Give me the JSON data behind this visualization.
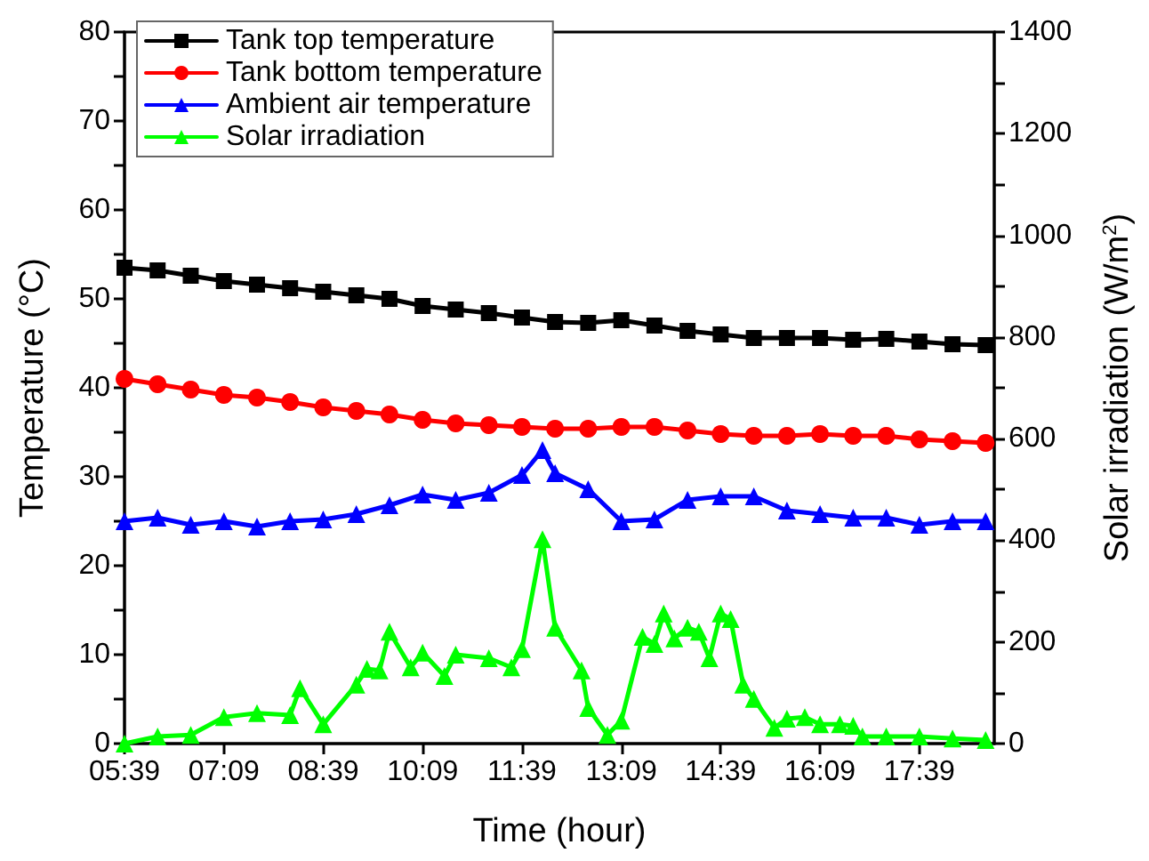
{
  "chart_data": {
    "type": "line",
    "xlabel": "Time (hour)",
    "ylabel": "Temperature (°C)",
    "y2label": "Solar irradiation (W/m$^{2}$)",
    "x": [
      5.65,
      6.15,
      6.65,
      7.15,
      7.65,
      8.15,
      8.65,
      9.15,
      9.65,
      10.15,
      10.65,
      11.15,
      11.65,
      12.15,
      12.65,
      13.15,
      13.65,
      14.15,
      14.65,
      15.15,
      15.65,
      16.15,
      16.65,
      17.15,
      17.65,
      18.15,
      18.65
    ],
    "series": [
      {
        "name": "Tank top temperature",
        "color": "#000000",
        "marker": "square",
        "values": [
          53.5,
          53.2,
          52.6,
          52.0,
          51.6,
          51.2,
          50.8,
          50.4,
          50.0,
          49.2,
          48.8,
          48.4,
          47.9,
          47.4,
          47.3,
          47.6,
          47.0,
          46.4,
          46.0,
          45.6,
          45.6,
          45.6,
          45.4,
          45.5,
          45.2,
          44.9,
          44.8
        ]
      },
      {
        "name": "Tank bottom temperature",
        "color": "#ff0000",
        "marker": "circle",
        "values": [
          41.0,
          40.4,
          39.8,
          39.2,
          38.9,
          38.4,
          37.8,
          37.4,
          37.0,
          36.4,
          36.0,
          35.8,
          35.6,
          35.4,
          35.4,
          35.6,
          35.6,
          35.2,
          34.8,
          34.6,
          34.6,
          34.8,
          34.6,
          34.6,
          34.2,
          34.0,
          33.8
        ]
      },
      {
        "name": "Ambient air temperature",
        "color": "#0000ff",
        "marker": "triangle",
        "x": [
          5.65,
          6.15,
          6.65,
          7.15,
          7.65,
          8.15,
          8.65,
          9.15,
          9.65,
          10.15,
          10.65,
          11.15,
          11.65,
          11.96,
          12.15,
          12.65,
          13.15,
          13.65,
          14.15,
          14.65,
          15.15,
          15.65,
          16.15,
          16.65,
          17.15,
          17.65,
          18.15,
          18.65
        ],
        "values": [
          25.0,
          25.4,
          24.6,
          25.0,
          24.4,
          25.0,
          25.2,
          25.8,
          26.8,
          28.0,
          27.4,
          28.2,
          30.2,
          33.0,
          30.4,
          28.6,
          25.0,
          25.2,
          27.4,
          27.8,
          27.8,
          26.2,
          25.8,
          25.4,
          25.4,
          24.6,
          25.0,
          25.0
        ]
      },
      {
        "name": "Solar irradiation",
        "color": "#00ff00",
        "marker": "triangle",
        "axis": "y2",
        "x": [
          5.65,
          6.15,
          6.65,
          7.15,
          7.65,
          8.15,
          8.3,
          8.65,
          9.15,
          9.31,
          9.5,
          9.65,
          9.97,
          10.15,
          10.48,
          10.65,
          11.15,
          11.49,
          11.65,
          11.96,
          12.15,
          12.55,
          12.65,
          12.94,
          13.15,
          13.47,
          13.65,
          13.79,
          13.95,
          14.15,
          14.32,
          14.48,
          14.65,
          14.8,
          14.99,
          15.15,
          15.46,
          15.65,
          15.92,
          16.15,
          16.45,
          16.65,
          16.79,
          17.15,
          17.65,
          18.15,
          18.65
        ],
        "values": [
          0,
          14,
          17,
          52,
          60,
          56,
          109,
          38,
          116,
          147,
          144,
          220,
          150,
          179,
          133,
          175,
          168,
          150,
          186,
          402,
          228,
          144,
          70,
          17,
          45,
          210,
          196,
          256,
          207,
          228,
          220,
          168,
          256,
          245,
          116,
          88,
          31,
          49,
          52,
          38,
          38,
          35,
          14,
          14,
          14,
          10,
          7
        ]
      }
    ],
    "xlim": [
      5.65,
      18.78
    ],
    "xticks": [
      {
        "value": 5.65,
        "label": "05:39"
      },
      {
        "value": 7.15,
        "label": "07:09"
      },
      {
        "value": 8.65,
        "label": "08:39"
      },
      {
        "value": 10.15,
        "label": "10:09"
      },
      {
        "value": 11.65,
        "label": "11:39"
      },
      {
        "value": 13.15,
        "label": "13:09"
      },
      {
        "value": 14.65,
        "label": "14:39"
      },
      {
        "value": 16.15,
        "label": "16:09"
      },
      {
        "value": 17.65,
        "label": "17:39"
      }
    ],
    "ylim": [
      0,
      80
    ],
    "yticks": [
      0,
      {
        "value": 5,
        "label": null
      },
      10,
      {
        "value": 15,
        "label": null
      },
      20,
      {
        "value": 25,
        "label": null
      },
      30,
      {
        "value": 35,
        "label": null
      },
      40,
      {
        "value": 45,
        "label": null
      },
      50,
      {
        "value": 55,
        "label": null
      },
      60,
      {
        "value": 65,
        "label": null
      },
      70,
      {
        "value": 75,
        "label": null
      },
      80
    ],
    "y2lim": [
      0,
      1400
    ],
    "y2ticks": [
      0,
      {
        "value": 100,
        "label": null
      },
      200,
      {
        "value": 300,
        "label": null
      },
      400,
      {
        "value": 500,
        "label": null
      },
      600,
      {
        "value": 700,
        "label": null
      },
      800,
      {
        "value": 900,
        "label": null
      },
      1000,
      {
        "value": 1100,
        "label": null
      },
      1200,
      {
        "value": 1300,
        "label": null
      },
      1400
    ],
    "grid": false,
    "legend": "top left",
    "line_style": "solid"
  }
}
